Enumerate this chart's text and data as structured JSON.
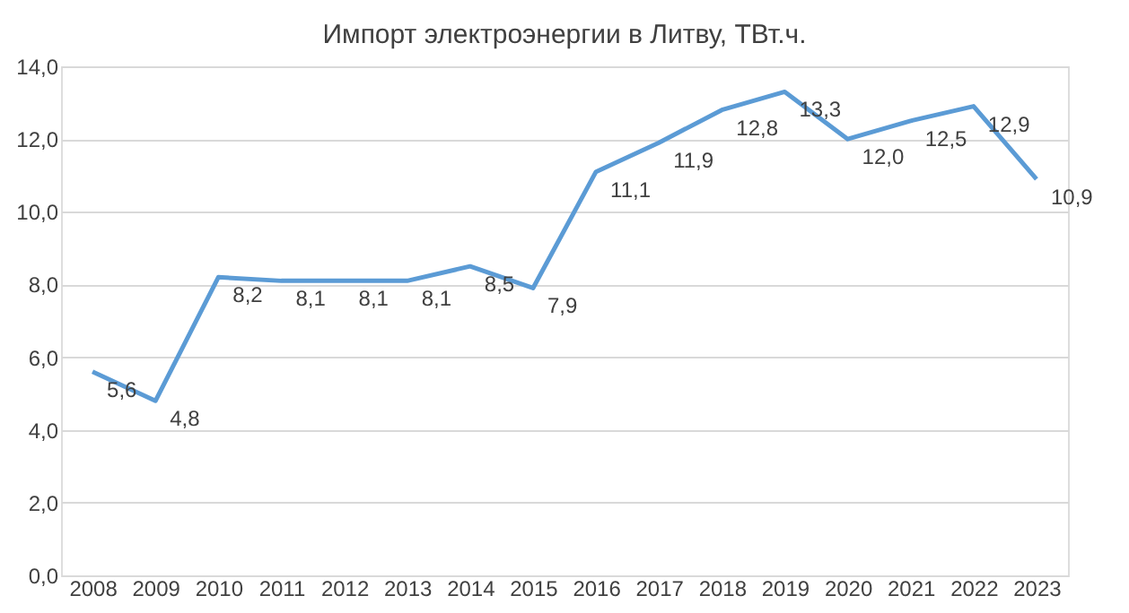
{
  "chart_data": {
    "type": "line",
    "title": "Импорт электроэнергии в Литву, ТВт.ч.",
    "categories": [
      "2008",
      "2009",
      "2010",
      "2011",
      "2012",
      "2013",
      "2014",
      "2015",
      "2016",
      "2017",
      "2018",
      "2019",
      "2020",
      "2021",
      "2022",
      "2023"
    ],
    "series": [
      {
        "color": "#5b9bd5",
        "values": [
          5.6,
          4.8,
          8.2,
          8.1,
          8.1,
          8.1,
          8.5,
          7.9,
          11.1,
          11.9,
          12.8,
          13.3,
          12.0,
          12.5,
          12.9,
          10.9
        ],
        "value_labels": [
          "5,6",
          "4,8",
          "8,2",
          "8,1",
          "8,1",
          "8,1",
          "8,5",
          "7,9",
          "11,1",
          "11,9",
          "12,8",
          "13,3",
          "12,0",
          "12,5",
          "12,9",
          "10,9"
        ]
      }
    ],
    "ylim": [
      0,
      14
    ],
    "yticks": [
      {
        "value": 0,
        "label": "0,0"
      },
      {
        "value": 2,
        "label": "2,0"
      },
      {
        "value": 4,
        "label": "4,0"
      },
      {
        "value": 6,
        "label": "6,0"
      },
      {
        "value": 8,
        "label": "8,0"
      },
      {
        "value": 10,
        "label": "10,0"
      },
      {
        "value": 12,
        "label": "12,0"
      },
      {
        "value": 14,
        "label": "14,0"
      }
    ],
    "grid": "y",
    "marker": "none",
    "line_style": "solid"
  }
}
